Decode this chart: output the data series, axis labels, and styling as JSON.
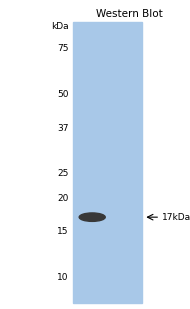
{
  "title": "Western Blot",
  "bg_color": "#a8c8e8",
  "fig_width": 1.9,
  "fig_height": 3.09,
  "dpi": 100,
  "kda_label": "kDa",
  "markers": [
    75,
    50,
    37,
    25,
    20,
    15,
    10
  ],
  "band_color": "#383838",
  "band_label": "←17kDa",
  "label_fontsize": 6.5,
  "title_fontsize": 7.5
}
